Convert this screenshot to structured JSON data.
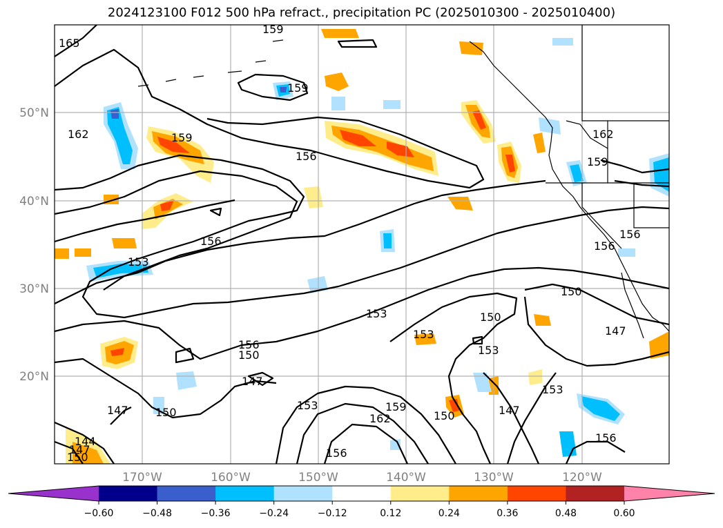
{
  "title": "2024123100 F012 500 hPa refract., precipitation PC (2025010300 - 2025010400)",
  "lat_labels": [
    "50°N",
    "40°N",
    "30°N",
    "20°N"
  ],
  "lon_labels": [
    "170°W",
    "160°W",
    "150°W",
    "140°W",
    "130°W",
    "120°W"
  ],
  "colorbar": {
    "colors": [
      "#9932cc",
      "#00008b",
      "#3a5fcd",
      "#00bfff",
      "#b0e2ff",
      "#ffffff",
      "#ffec8b",
      "#ffa500",
      "#ff4500",
      "#b22222",
      "#ff82ab"
    ],
    "under_color": "#9932cc",
    "over_color": "#ff82ab",
    "tick_labels": [
      "−0.60",
      "−0.48",
      "−0.36",
      "−0.24",
      "−0.12",
      "0.12",
      "0.24",
      "0.36",
      "0.48",
      "0.60"
    ]
  },
  "contour_labels": [
    "165",
    "159",
    "159",
    "162",
    "159",
    "156",
    "156",
    "153",
    "162",
    "159",
    "156",
    "156",
    "156",
    "150",
    "153",
    "153",
    "150",
    "147",
    "153",
    "150",
    "147",
    "153",
    "147",
    "150",
    "147",
    "153",
    "162",
    "159",
    "150",
    "156",
    "147",
    "150",
    "144",
    "156"
  ]
}
